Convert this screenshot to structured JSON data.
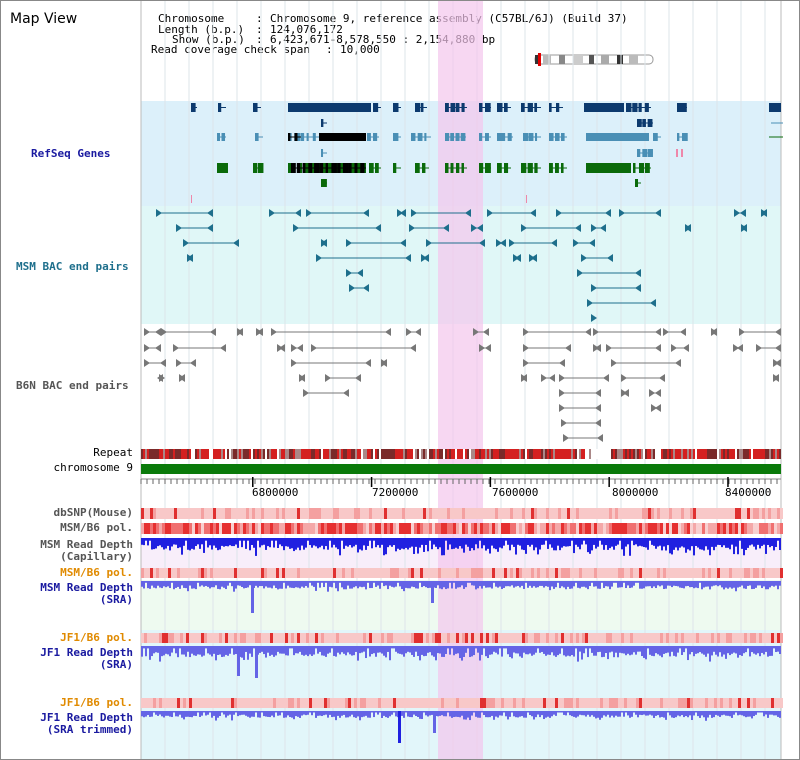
{
  "view_title": "Map View",
  "info": {
    "chromosome_key": "Chromosome",
    "chromosome_val": "Chromosome 9, reference assembly (C57BL/6J) (Build 37)",
    "length_key": "Length (b.p.)",
    "length_val": "124,076,172",
    "show_key": "Show (b.p.)",
    "show_val": "6,423,671-8,578,550 : 2,154,880 bp",
    "read_key": "Read coverage check span",
    "read_val": "10,000"
  },
  "tracks": {
    "refseq": "RefSeq Genes",
    "msm_bac": "MSM BAC end pairs",
    "b6n_bac": "B6N BAC end pairs",
    "repeat": "Repeat",
    "chromosome": "chromosome 9",
    "dbsnp": "dbSNP(Mouse)",
    "msm_b6_pol": "MSM/B6 pol.",
    "msm_depth_cap_1": "MSM Read Depth",
    "msm_depth_cap_2": "(Capillary)",
    "msm_b6_pol_2": "MSM/B6 pol.",
    "msm_depth_sra_1": "MSM Read Depth",
    "msm_depth_sra_2": "(SRA)",
    "jf1_pol_1": "JF1/B6 pol.",
    "jf1_depth_sra_1": "JF1 Read Depth",
    "jf1_depth_sra_2": "(SRA)",
    "jf1_pol_2": "JF1/B6 pol.",
    "jf1_depth_trim_1": "JF1 Read Depth",
    "jf1_depth_trim_2": "(SRA trimmed)"
  },
  "axis": {
    "ticks": [
      "6800000",
      "7200000",
      "7600000",
      "8000000",
      "8400000"
    ],
    "tick_values": [
      6800000,
      7200000,
      7600000,
      8000000,
      8400000
    ],
    "start": 6423671,
    "end": 8578550
  },
  "colors": {
    "refseq_bg": "#dcf0fa",
    "msm_bg": "#e0f7f7",
    "highlight": "#f9d6f2",
    "gene_navy": "#0c3a6e",
    "gene_steel": "#4a8fb5",
    "gene_black": "#000000",
    "gene_green": "#0a6a0a",
    "bac_teal": "#1e6f8c",
    "bac_gray": "#777777",
    "chromosome": "#0a7a0a",
    "depth_blue": "#2020e0",
    "depth_sra": "#6464e6",
    "pol_red": "#ee3030"
  }
}
